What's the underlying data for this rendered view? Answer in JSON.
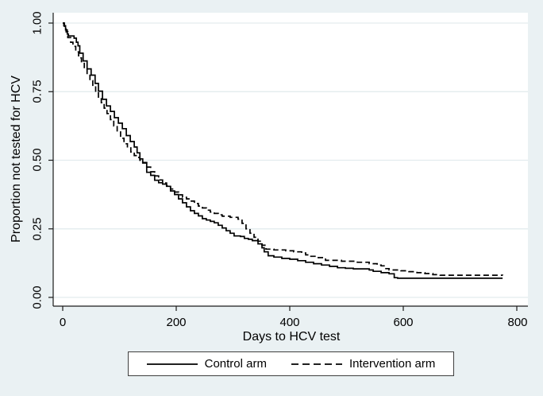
{
  "chart_data": {
    "type": "line",
    "subtype": "kaplan-meier-step-survival",
    "title": "",
    "xlabel": "Days to HCV test",
    "ylabel": "Proportion not tested for HCV",
    "xlim": [
      0,
      820
    ],
    "ylim": [
      -0.03,
      1.04
    ],
    "grid": "horizontal-only",
    "legend_position": "bottom-center-outside",
    "xticks": [
      0,
      200,
      400,
      600,
      800
    ],
    "xtick_labels": [
      "0",
      "200",
      "400",
      "600",
      "800"
    ],
    "ytick_values": [
      0,
      0.25,
      0.5,
      0.75,
      1.0
    ],
    "ytick_labels": [
      "0.00",
      "0.25",
      "0.50",
      "0.75",
      "1.00"
    ],
    "series": [
      {
        "name": "Control arm",
        "line_style": "solid",
        "color": "#000000",
        "points": [
          [
            0,
            1.0
          ],
          [
            2,
            0.99
          ],
          [
            5,
            0.975
          ],
          [
            8,
            0.96
          ],
          [
            10,
            0.953
          ],
          [
            20,
            0.945
          ],
          [
            24,
            0.93
          ],
          [
            27,
            0.917
          ],
          [
            30,
            0.89
          ],
          [
            36,
            0.862
          ],
          [
            43,
            0.833
          ],
          [
            50,
            0.81
          ],
          [
            57,
            0.78
          ],
          [
            63,
            0.752
          ],
          [
            70,
            0.722
          ],
          [
            77,
            0.698
          ],
          [
            84,
            0.678
          ],
          [
            91,
            0.655
          ],
          [
            98,
            0.635
          ],
          [
            105,
            0.615
          ],
          [
            112,
            0.59
          ],
          [
            119,
            0.568
          ],
          [
            126,
            0.548
          ],
          [
            131,
            0.527
          ],
          [
            136,
            0.505
          ],
          [
            141,
            0.49
          ],
          [
            148,
            0.456
          ],
          [
            155,
            0.445
          ],
          [
            162,
            0.427
          ],
          [
            169,
            0.418
          ],
          [
            176,
            0.413
          ],
          [
            183,
            0.405
          ],
          [
            190,
            0.388
          ],
          [
            197,
            0.375
          ],
          [
            204,
            0.359
          ],
          [
            211,
            0.345
          ],
          [
            218,
            0.33
          ],
          [
            225,
            0.316
          ],
          [
            232,
            0.306
          ],
          [
            239,
            0.297
          ],
          [
            246,
            0.287
          ],
          [
            253,
            0.282
          ],
          [
            260,
            0.277
          ],
          [
            267,
            0.272
          ],
          [
            274,
            0.263
          ],
          [
            281,
            0.253
          ],
          [
            288,
            0.243
          ],
          [
            295,
            0.234
          ],
          [
            302,
            0.224
          ],
          [
            313,
            0.222
          ],
          [
            320,
            0.215
          ],
          [
            327,
            0.212
          ],
          [
            334,
            0.207
          ],
          [
            344,
            0.195
          ],
          [
            351,
            0.181
          ],
          [
            355,
            0.166
          ],
          [
            362,
            0.152
          ],
          [
            372,
            0.147
          ],
          [
            386,
            0.142
          ],
          [
            400,
            0.139
          ],
          [
            414,
            0.134
          ],
          [
            428,
            0.128
          ],
          [
            442,
            0.123
          ],
          [
            456,
            0.118
          ],
          [
            470,
            0.113
          ],
          [
            484,
            0.108
          ],
          [
            498,
            0.106
          ],
          [
            512,
            0.104
          ],
          [
            540,
            0.1
          ],
          [
            547,
            0.095
          ],
          [
            561,
            0.09
          ],
          [
            575,
            0.086
          ],
          [
            584,
            0.072
          ],
          [
            590,
            0.07
          ],
          [
            775,
            0.07
          ]
        ]
      },
      {
        "name": "Intervention arm",
        "line_style": "dashed",
        "color": "#000000",
        "points": [
          [
            0,
            1.0
          ],
          [
            3,
            0.985
          ],
          [
            6,
            0.968
          ],
          [
            9,
            0.947
          ],
          [
            14,
            0.93
          ],
          [
            18,
            0.915
          ],
          [
            23,
            0.895
          ],
          [
            28,
            0.873
          ],
          [
            33,
            0.853
          ],
          [
            38,
            0.833
          ],
          [
            43,
            0.813
          ],
          [
            48,
            0.79
          ],
          [
            53,
            0.77
          ],
          [
            58,
            0.748
          ],
          [
            63,
            0.73
          ],
          [
            68,
            0.71
          ],
          [
            73,
            0.69
          ],
          [
            78,
            0.67
          ],
          [
            84,
            0.648
          ],
          [
            90,
            0.625
          ],
          [
            96,
            0.603
          ],
          [
            102,
            0.58
          ],
          [
            108,
            0.56
          ],
          [
            114,
            0.545
          ],
          [
            120,
            0.53
          ],
          [
            126,
            0.517
          ],
          [
            131,
            0.51
          ],
          [
            136,
            0.5
          ],
          [
            141,
            0.492
          ],
          [
            148,
            0.475
          ],
          [
            155,
            0.458
          ],
          [
            162,
            0.443
          ],
          [
            169,
            0.428
          ],
          [
            176,
            0.417
          ],
          [
            183,
            0.407
          ],
          [
            190,
            0.395
          ],
          [
            197,
            0.384
          ],
          [
            204,
            0.374
          ],
          [
            211,
            0.365
          ],
          [
            218,
            0.359
          ],
          [
            225,
            0.351
          ],
          [
            232,
            0.342
          ],
          [
            239,
            0.333
          ],
          [
            246,
            0.326
          ],
          [
            253,
            0.318
          ],
          [
            260,
            0.311
          ],
          [
            267,
            0.306
          ],
          [
            274,
            0.301
          ],
          [
            281,
            0.296
          ],
          [
            295,
            0.292
          ],
          [
            309,
            0.285
          ],
          [
            316,
            0.27
          ],
          [
            323,
            0.25
          ],
          [
            330,
            0.234
          ],
          [
            337,
            0.219
          ],
          [
            344,
            0.205
          ],
          [
            351,
            0.19
          ],
          [
            358,
            0.176
          ],
          [
            372,
            0.173
          ],
          [
            393,
            0.17
          ],
          [
            407,
            0.166
          ],
          [
            421,
            0.162
          ],
          [
            428,
            0.155
          ],
          [
            435,
            0.15
          ],
          [
            449,
            0.145
          ],
          [
            463,
            0.135
          ],
          [
            491,
            0.132
          ],
          [
            519,
            0.128
          ],
          [
            540,
            0.123
          ],
          [
            554,
            0.118
          ],
          [
            561,
            0.115
          ],
          [
            568,
            0.105
          ],
          [
            575,
            0.1
          ],
          [
            596,
            0.097
          ],
          [
            610,
            0.094
          ],
          [
            624,
            0.09
          ],
          [
            638,
            0.087
          ],
          [
            652,
            0.083
          ],
          [
            665,
            0.081
          ],
          [
            775,
            0.08
          ]
        ]
      }
    ]
  },
  "axis_titles": {
    "x": "Days to HCV test",
    "y": "Proportion not tested for HCV"
  },
  "legend": {
    "items": [
      {
        "label": "Control arm",
        "style": "solid"
      },
      {
        "label": "Intervention arm",
        "style": "dashed"
      }
    ]
  },
  "colors": {
    "figure_background": "#EAF1F3",
    "plot_background": "#FFFFFF",
    "gridline": "#E3ECEE",
    "axis_line": "#1A1A1A",
    "curve": "#000000",
    "legend_border": "#3F3F3F",
    "text": "#000000"
  }
}
